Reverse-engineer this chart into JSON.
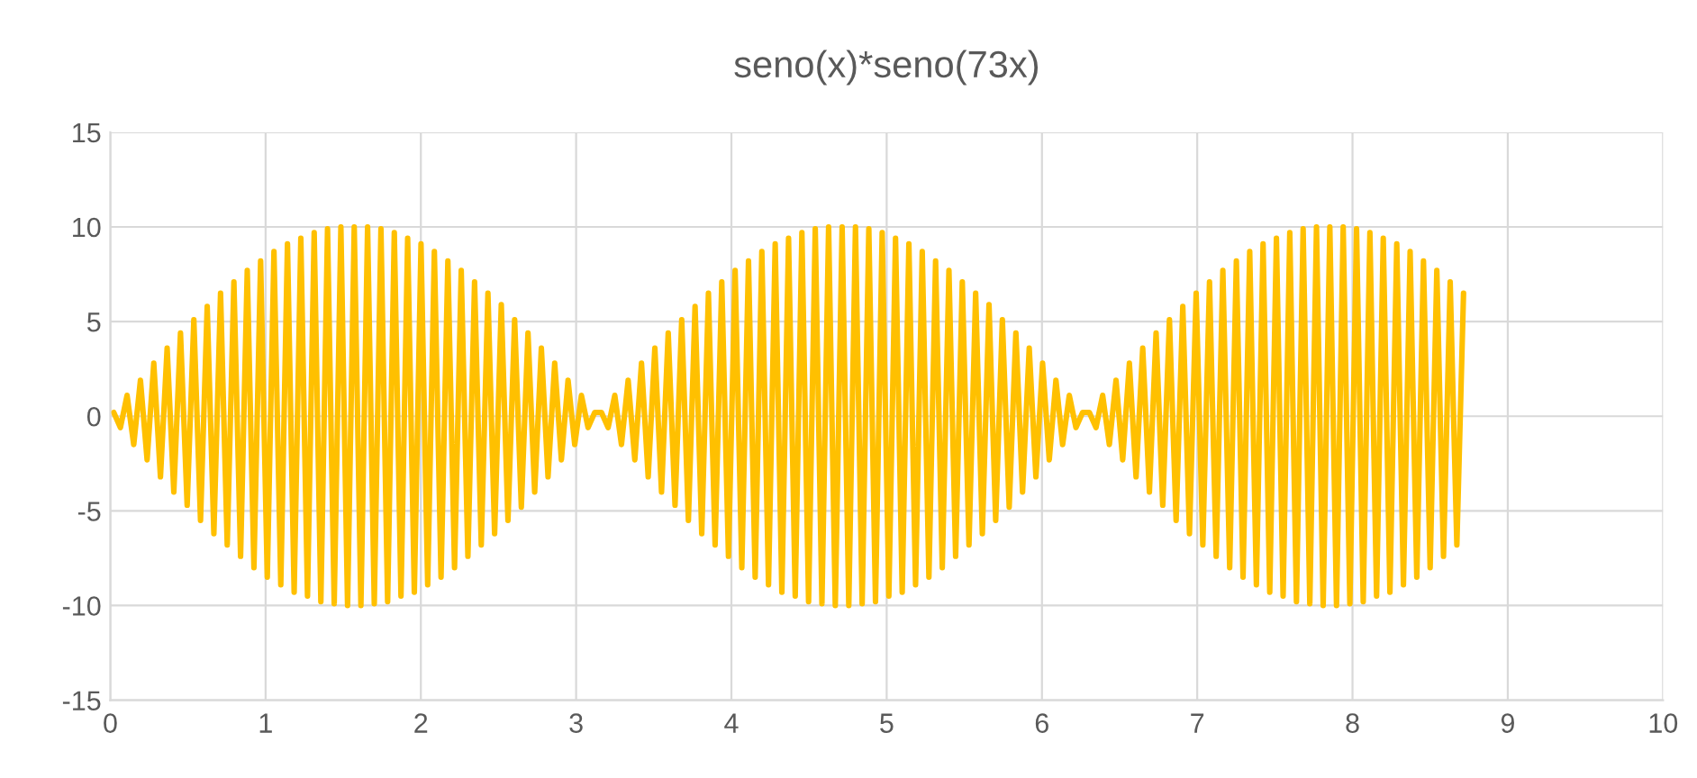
{
  "chart_data": {
    "type": "line",
    "title": "seno(x)*seno(73x)",
    "x": [
      0.022,
      0.065,
      0.108,
      0.151,
      0.194,
      0.237,
      0.28,
      0.323,
      0.366,
      0.409,
      0.452,
      0.495,
      0.538,
      0.581,
      0.624,
      0.667,
      0.71,
      0.753,
      0.796,
      0.839,
      0.882,
      0.925,
      0.968,
      1.011,
      1.054,
      1.098,
      1.141,
      1.184,
      1.227,
      1.27,
      1.313,
      1.356,
      1.399,
      1.442,
      1.485,
      1.528,
      1.571,
      1.614,
      1.657,
      1.7,
      1.743,
      1.786,
      1.829,
      1.872,
      1.915,
      1.958,
      2.001,
      2.044,
      2.087,
      2.13,
      2.174,
      2.217,
      2.26,
      2.303,
      2.346,
      2.389,
      2.432,
      2.475,
      2.518,
      2.561,
      2.604,
      2.647,
      2.69,
      2.733,
      2.776,
      2.819,
      2.862,
      2.905,
      2.948,
      2.991,
      3.034,
      3.077,
      3.12,
      3.163,
      3.206,
      3.249,
      3.292,
      3.335,
      3.378,
      3.421,
      3.464,
      3.507,
      3.55,
      3.593,
      3.637,
      3.68,
      3.723,
      3.766,
      3.809,
      3.852,
      3.895,
      3.938,
      3.981,
      4.024,
      4.067,
      4.11,
      4.153,
      4.196,
      4.239,
      4.282,
      4.325,
      4.368,
      4.411,
      4.454,
      4.497,
      4.54,
      4.583,
      4.626,
      4.669,
      4.713,
      4.756,
      4.799,
      4.842,
      4.885,
      4.928,
      4.971,
      5.014,
      5.057,
      5.1,
      5.143,
      5.186,
      5.229,
      5.272,
      5.315,
      5.358,
      5.401,
      5.444,
      5.487,
      5.53,
      5.573,
      5.616,
      5.659,
      5.702,
      5.745,
      5.789,
      5.832,
      5.875,
      5.918,
      5.961,
      6.004,
      6.047,
      6.09,
      6.133,
      6.176,
      6.219,
      6.262,
      6.305,
      6.348,
      6.391,
      6.434,
      6.477,
      6.52,
      6.563,
      6.606,
      6.649,
      6.692,
      6.735,
      6.778,
      6.821,
      6.864,
      6.907,
      6.95,
      6.993,
      7.036,
      7.079,
      7.122,
      7.165,
      7.209,
      7.252,
      7.295,
      7.338,
      7.381,
      7.424,
      7.467,
      7.51,
      7.553,
      7.596,
      7.639,
      7.682,
      7.725,
      7.768,
      7.811,
      7.854,
      7.897,
      7.94,
      7.983,
      8.026,
      8.069,
      8.112,
      8.155,
      8.198,
      8.241,
      8.285,
      8.328,
      8.371,
      8.414,
      8.457,
      8.5,
      8.543,
      8.586,
      8.629,
      8.672,
      8.715
    ],
    "series": [
      {
        "color": "#ffc000",
        "values": [
          0.2,
          -0.6,
          1.1,
          -1.5,
          1.9,
          -2.3,
          2.8,
          -3.2,
          3.6,
          -4.0,
          4.4,
          -4.7,
          5.1,
          -5.5,
          5.8,
          -6.2,
          6.5,
          -6.8,
          7.1,
          -7.4,
          7.7,
          -8.0,
          8.2,
          -8.5,
          8.7,
          -8.9,
          9.1,
          -9.3,
          9.4,
          -9.5,
          9.7,
          -9.8,
          9.9,
          -9.9,
          10.0,
          -10.0,
          10.0,
          -10.0,
          10.0,
          -9.9,
          9.9,
          -9.8,
          9.7,
          -9.5,
          9.4,
          -9.3,
          9.1,
          -8.9,
          8.7,
          -8.5,
          8.2,
          -8.0,
          7.7,
          -7.4,
          7.1,
          -6.8,
          6.5,
          -6.2,
          5.9,
          -5.5,
          5.1,
          -4.8,
          4.4,
          -4.0,
          3.6,
          -3.2,
          2.8,
          -2.3,
          1.9,
          -1.5,
          1.1,
          -0.6,
          0.2,
          0.2,
          -0.6,
          1.1,
          -1.5,
          1.9,
          -2.3,
          2.8,
          -3.2,
          3.6,
          -4.0,
          4.4,
          -4.7,
          5.1,
          -5.5,
          5.8,
          -6.2,
          6.5,
          -6.8,
          7.1,
          -7.4,
          7.7,
          -8.0,
          8.2,
          -8.5,
          8.7,
          -8.9,
          9.1,
          -9.3,
          9.4,
          -9.5,
          9.7,
          -9.8,
          9.9,
          -9.9,
          10.0,
          -10.0,
          10.0,
          -10.0,
          10.0,
          -9.9,
          9.9,
          -9.8,
          9.7,
          -9.5,
          9.4,
          -9.3,
          9.1,
          -8.9,
          8.7,
          -8.5,
          8.2,
          -8.0,
          7.7,
          -7.4,
          7.1,
          -6.8,
          6.5,
          -6.2,
          5.9,
          -5.5,
          5.1,
          -4.8,
          4.4,
          -4.0,
          3.6,
          -3.2,
          2.8,
          -2.3,
          1.9,
          -1.5,
          1.1,
          -0.6,
          0.2,
          0.2,
          -0.6,
          1.1,
          -1.5,
          1.9,
          -2.3,
          2.8,
          -3.2,
          3.6,
          -4.0,
          4.4,
          -4.7,
          5.1,
          -5.5,
          5.8,
          -6.2,
          6.5,
          -6.8,
          7.1,
          -7.4,
          7.7,
          -8.0,
          8.2,
          -8.5,
          8.7,
          -8.9,
          9.1,
          -9.3,
          9.4,
          -9.5,
          9.7,
          -9.8,
          9.9,
          -9.9,
          10.0,
          -10.0,
          10.0,
          -10.0,
          10.0,
          -9.9,
          9.9,
          -9.8,
          9.7,
          -9.5,
          9.4,
          -9.3,
          9.1,
          -8.9,
          8.7,
          -8.5,
          8.2,
          -8.0,
          7.7,
          -7.4,
          7.1,
          -6.8,
          6.5
        ]
      }
    ],
    "xlim": [
      0,
      10
    ],
    "xticks": [
      0,
      1,
      2,
      3,
      4,
      5,
      6,
      7,
      8,
      9,
      10
    ],
    "ylim": [
      -15,
      15
    ],
    "yticks": [
      -15,
      -10,
      -5,
      0,
      5,
      10,
      15
    ],
    "grid": true,
    "line_style": "solid",
    "marker": "none"
  }
}
